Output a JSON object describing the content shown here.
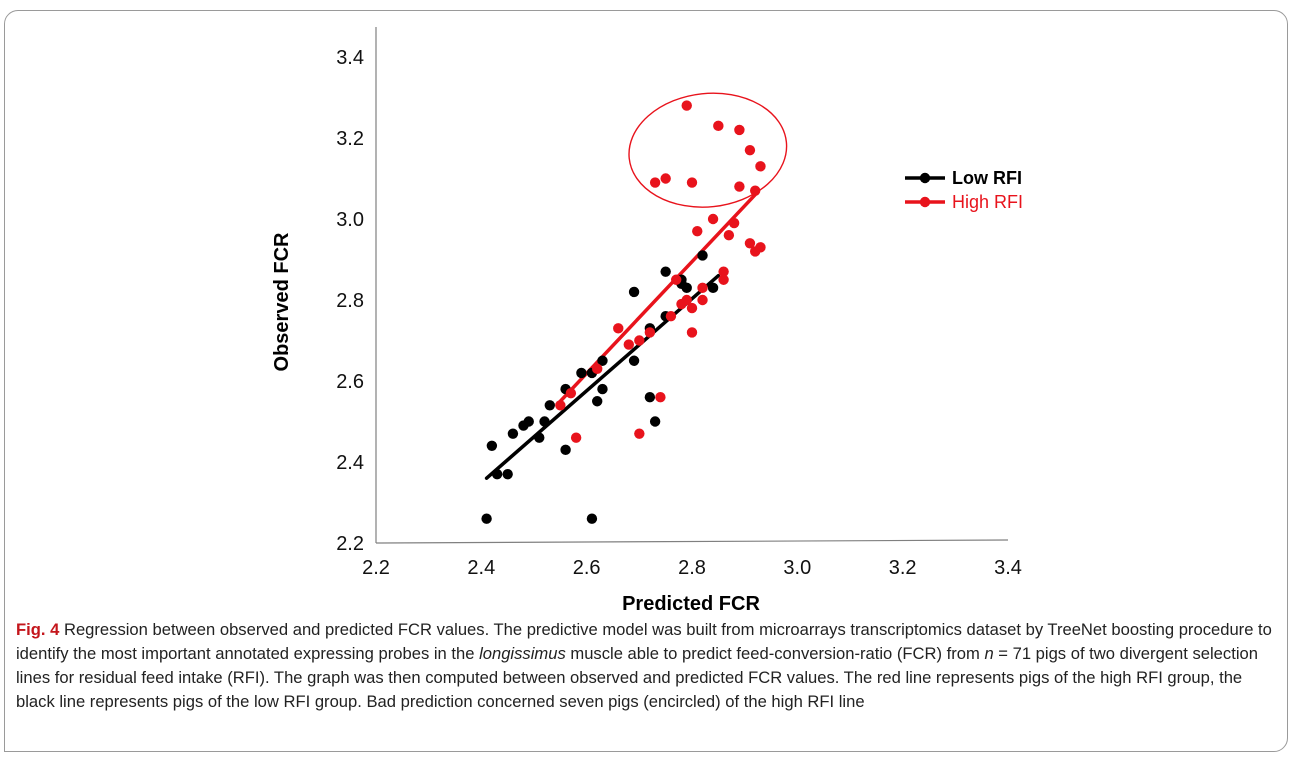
{
  "caption": {
    "label": "Fig. 4",
    "part1": " Regression between observed and predicted FCR values. The predictive model was built from microarrays transcriptomics dataset by TreeNet boosting procedure to identify the most important annotated expressing probes in the ",
    "italic1": "longissimus",
    "part2": " muscle able to predict feed-conversion-ratio (FCR) from ",
    "italic2": "n",
    "part3": " = 71 pigs of two divergent selection lines for residual feed intake (RFI). The graph was then computed between observed and predicted FCR values. The red line represents pigs of the high RFI group, the black line represents pigs of the low RFI group. Bad prediction concerned seven pigs (encircled) of the high RFI line"
  },
  "chart_data": {
    "type": "scatter",
    "xlabel": "Predicted FCR",
    "ylabel": "Observed FCR",
    "xlim": [
      2.2,
      3.4
    ],
    "ylim": [
      2.2,
      3.4
    ],
    "xticks": [
      "2.2",
      "2.4",
      "2.6",
      "2.8",
      "3.0",
      "3.2",
      "3.4"
    ],
    "yticks": [
      "2.2",
      "2.4",
      "2.6",
      "2.8",
      "3.0",
      "3.2",
      "3.4"
    ],
    "grid": false,
    "legend_position": "right",
    "series": [
      {
        "name": "Low RFI",
        "color": "#000000",
        "points": [
          [
            2.41,
            2.26
          ],
          [
            2.42,
            2.44
          ],
          [
            2.43,
            2.37
          ],
          [
            2.45,
            2.37
          ],
          [
            2.46,
            2.47
          ],
          [
            2.48,
            2.49
          ],
          [
            2.49,
            2.5
          ],
          [
            2.51,
            2.46
          ],
          [
            2.52,
            2.5
          ],
          [
            2.53,
            2.54
          ],
          [
            2.56,
            2.43
          ],
          [
            2.56,
            2.58
          ],
          [
            2.59,
            2.62
          ],
          [
            2.61,
            2.26
          ],
          [
            2.61,
            2.62
          ],
          [
            2.62,
            2.55
          ],
          [
            2.63,
            2.65
          ],
          [
            2.63,
            2.58
          ],
          [
            2.69,
            2.82
          ],
          [
            2.69,
            2.65
          ],
          [
            2.72,
            2.56
          ],
          [
            2.72,
            2.73
          ],
          [
            2.73,
            2.5
          ],
          [
            2.75,
            2.87
          ],
          [
            2.75,
            2.76
          ],
          [
            2.78,
            2.85
          ],
          [
            2.78,
            2.84
          ],
          [
            2.79,
            2.83
          ],
          [
            2.82,
            2.91
          ],
          [
            2.84,
            2.83
          ]
        ],
        "fit": [
          [
            2.41,
            2.36
          ],
          [
            2.85,
            2.86
          ]
        ]
      },
      {
        "name": "High RFI",
        "color": "#e8131c",
        "points": [
          [
            2.55,
            2.54
          ],
          [
            2.57,
            2.57
          ],
          [
            2.58,
            2.46
          ],
          [
            2.62,
            2.63
          ],
          [
            2.66,
            2.73
          ],
          [
            2.68,
            2.69
          ],
          [
            2.7,
            2.7
          ],
          [
            2.7,
            2.47
          ],
          [
            2.72,
            2.72
          ],
          [
            2.73,
            3.09
          ],
          [
            2.74,
            2.56
          ],
          [
            2.75,
            3.1
          ],
          [
            2.76,
            2.76
          ],
          [
            2.77,
            2.85
          ],
          [
            2.78,
            2.79
          ],
          [
            2.79,
            2.8
          ],
          [
            2.79,
            3.28
          ],
          [
            2.8,
            2.72
          ],
          [
            2.8,
            3.09
          ],
          [
            2.8,
            2.78
          ],
          [
            2.81,
            2.97
          ],
          [
            2.82,
            2.8
          ],
          [
            2.82,
            2.83
          ],
          [
            2.84,
            3.0
          ],
          [
            2.85,
            3.23
          ],
          [
            2.86,
            2.87
          ],
          [
            2.86,
            2.85
          ],
          [
            2.87,
            2.96
          ],
          [
            2.88,
            2.99
          ],
          [
            2.89,
            3.22
          ],
          [
            2.89,
            3.08
          ],
          [
            2.91,
            2.94
          ],
          [
            2.91,
            3.17
          ],
          [
            2.92,
            2.92
          ],
          [
            2.92,
            3.07
          ],
          [
            2.93,
            2.93
          ],
          [
            2.93,
            3.13
          ]
        ],
        "fit": [
          [
            2.55,
            2.55
          ],
          [
            2.92,
            3.06
          ]
        ]
      }
    ],
    "annotation": {
      "type": "ellipse",
      "color": "#e8131c",
      "cx": 2.83,
      "cy": 3.17,
      "rx": 0.15,
      "ry": 0.14
    }
  }
}
